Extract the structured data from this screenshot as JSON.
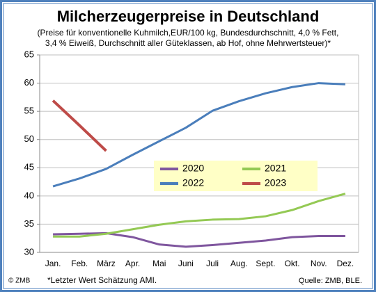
{
  "chart_data": {
    "type": "line",
    "title": "Milcherzeugerpreise in Deutschland",
    "subtitle_lines": [
      "(Preise für konventionelle Kuhmilch,EUR/100 kg, Bundesdurchschnitt, 4,0 % Fett,",
      "3,4 % Eiweiß, Durchschnitt aller Güteklassen, ab Hof, ohne Mehrwertsteuer)*"
    ],
    "categories": [
      "Jan.",
      "Feb.",
      "März",
      "Apr.",
      "Mai",
      "Juni",
      "Juli",
      "Aug.",
      "Sept.",
      "Okt.",
      "Nov.",
      "Dez."
    ],
    "series": [
      {
        "name": "2020",
        "color": "#7f569e",
        "values": [
          33.2,
          33.3,
          33.4,
          32.7,
          31.4,
          31.0,
          31.3,
          31.7,
          32.1,
          32.7,
          32.9,
          32.9
        ]
      },
      {
        "name": "2021",
        "color": "#94c954",
        "values": [
          32.8,
          32.8,
          33.3,
          34.1,
          34.9,
          35.5,
          35.8,
          35.9,
          36.4,
          37.5,
          39.1,
          40.4
        ]
      },
      {
        "name": "2022",
        "color": "#4a7ebb",
        "values": [
          41.7,
          43.1,
          44.8,
          47.3,
          49.7,
          52.1,
          55.1,
          56.8,
          58.2,
          59.3,
          60.0,
          59.8
        ]
      },
      {
        "name": "2023",
        "color": "#be4b48",
        "values": [
          56.9,
          52.5,
          48.0,
          null,
          null,
          null,
          null,
          null,
          null,
          null,
          null,
          null
        ]
      }
    ],
    "ylim": [
      30,
      65
    ],
    "yticks": [
      30,
      35,
      40,
      45,
      50,
      55,
      60,
      65
    ],
    "grid": true,
    "copyright": "© ZMB",
    "footnote": "*Letzter Wert Schätzung AMI.",
    "source": "Quelle: ZMB, BLE."
  }
}
